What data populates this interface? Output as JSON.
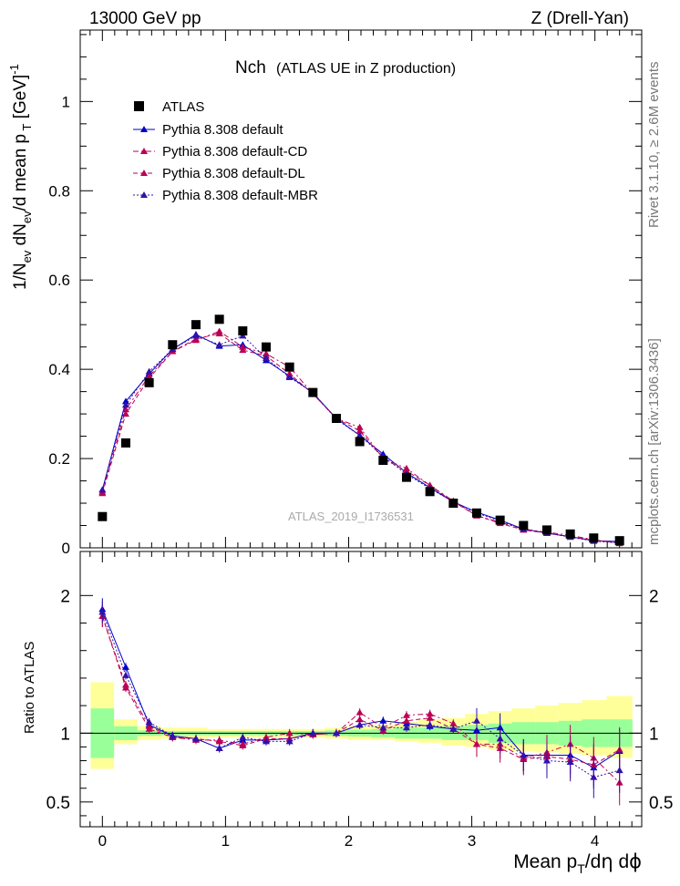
{
  "header": {
    "left": "13000 GeV pp",
    "right": "Z (Drell-Yan)"
  },
  "side_text": {
    "top": "Rivet 3.1.10, ≥ 2.6M events",
    "bottom": "mcplots.cern.ch [arXiv:1306.3436]"
  },
  "chart_data": {
    "type": "scatter",
    "title_main": "Nch",
    "title_sub": "(ATLAS UE in Z production)",
    "analysis_tag": "ATLAS_2019_I1736531",
    "xlabel": "Mean p_T/dη dϕ",
    "ylabel": "1/N_ev dN_ev/d mean p_T [GeV]^-1",
    "ratio_ylabel": "Ratio to ATLAS",
    "xlim": [
      -0.18,
      4.38
    ],
    "ylim": [
      0,
      1.16
    ],
    "ratio_ylim": [
      0.32,
      2.32
    ],
    "x_ticks": [
      "0",
      "1",
      "2",
      "3",
      "4"
    ],
    "y_ticks": [
      "0",
      "0.2",
      "0.4",
      "0.6",
      "0.8",
      "1"
    ],
    "ratio_ticks": [
      "0.5",
      "1",
      "2"
    ],
    "x": [
      0.0,
      0.19,
      0.38,
      0.57,
      0.76,
      0.95,
      1.14,
      1.33,
      1.52,
      1.71,
      1.9,
      2.09,
      2.28,
      2.47,
      2.66,
      2.85,
      3.04,
      3.23,
      3.42,
      3.61,
      3.8,
      3.99,
      4.2
    ],
    "data": {
      "name": "ATLAS",
      "values": [
        0.07,
        0.235,
        0.37,
        0.455,
        0.5,
        0.512,
        0.486,
        0.45,
        0.405,
        0.348,
        0.29,
        0.238,
        0.196,
        0.158,
        0.126,
        0.1,
        0.078,
        0.062,
        0.05,
        0.04,
        0.031,
        0.022,
        0.016
      ]
    },
    "series": [
      {
        "name": "Pythia 8.308 default",
        "color": "#0000cc",
        "dash": "solid",
        "values": [
          0.13,
          0.328,
          0.39,
          0.445,
          0.478,
          0.452,
          0.455,
          0.42,
          0.385,
          0.347,
          0.29,
          0.252,
          0.21,
          0.168,
          0.135,
          0.103,
          0.08,
          0.062,
          0.042,
          0.033,
          0.025,
          0.016,
          0.014
        ]
      },
      {
        "name": "Pythia 8.308 default-CD",
        "color": "#bb0055",
        "dash": "dashdot",
        "values": [
          0.125,
          0.31,
          0.385,
          0.44,
          0.465,
          0.485,
          0.45,
          0.435,
          0.405,
          0.345,
          0.29,
          0.27,
          0.2,
          0.178,
          0.14,
          0.105,
          0.072,
          0.057,
          0.042,
          0.035,
          0.028,
          0.018,
          0.01
        ]
      },
      {
        "name": "Pythia 8.308 default-DL",
        "color": "#bb0055",
        "dash": "dashed",
        "values": [
          0.122,
          0.3,
          0.38,
          0.44,
          0.468,
          0.48,
          0.443,
          0.43,
          0.39,
          0.345,
          0.29,
          0.262,
          0.2,
          0.172,
          0.14,
          0.103,
          0.072,
          0.055,
          0.04,
          0.033,
          0.025,
          0.017,
          0.011
        ]
      },
      {
        "name": "Pythia 8.308 default-MBR",
        "color": "#3311aa",
        "dash": "dotted",
        "values": [
          0.13,
          0.32,
          0.395,
          0.445,
          0.475,
          0.455,
          0.475,
          0.425,
          0.382,
          0.348,
          0.288,
          0.252,
          0.205,
          0.165,
          0.133,
          0.103,
          0.078,
          0.06,
          0.042,
          0.033,
          0.024,
          0.015,
          0.011
        ]
      }
    ],
    "ratio_series": [
      {
        "name": "Pythia 8.308 default",
        "values": [
          1.9,
          1.48,
          1.06,
          0.98,
          0.96,
          0.89,
          0.95,
          0.95,
          0.96,
          1.0,
          1.0,
          1.06,
          1.09,
          1.07,
          1.05,
          1.03,
          1.02,
          1.04,
          0.84,
          0.84,
          0.84,
          0.75,
          0.87
        ]
      },
      {
        "name": "Pythia 8.308 default-CD",
        "values": [
          1.85,
          1.35,
          1.05,
          0.97,
          0.95,
          0.95,
          0.92,
          0.97,
          1.0,
          0.99,
          1.0,
          1.15,
          1.04,
          1.13,
          1.14,
          1.07,
          0.92,
          0.92,
          0.82,
          0.86,
          0.92,
          0.82,
          0.64
        ]
      },
      {
        "name": "Pythia 8.308 default-DL",
        "values": [
          1.85,
          1.33,
          1.03,
          0.97,
          0.96,
          0.94,
          0.91,
          0.96,
          0.96,
          0.99,
          1.0,
          1.1,
          1.02,
          1.09,
          1.11,
          1.03,
          0.92,
          0.89,
          0.81,
          0.83,
          0.81,
          0.77,
          0.88
        ]
      },
      {
        "name": "Pythia 8.308 default-MBR",
        "values": [
          1.88,
          1.42,
          1.08,
          0.98,
          0.96,
          0.89,
          0.97,
          0.94,
          0.94,
          1.0,
          1.0,
          1.06,
          1.04,
          1.04,
          1.06,
          1.03,
          1.09,
          0.96,
          0.84,
          0.8,
          0.79,
          0.68,
          0.73
        ]
      }
    ],
    "ratio_band_stat": [
      [
        0.82,
        1.18
      ],
      [
        0.95,
        1.05
      ],
      [
        0.98,
        1.02
      ],
      [
        0.985,
        1.015
      ],
      [
        0.985,
        1.015
      ],
      [
        0.985,
        1.015
      ],
      [
        0.985,
        1.015
      ],
      [
        0.985,
        1.015
      ],
      [
        0.985,
        1.015
      ],
      [
        0.985,
        1.015
      ],
      [
        0.98,
        1.02
      ],
      [
        0.975,
        1.025
      ],
      [
        0.97,
        1.03
      ],
      [
        0.96,
        1.04
      ],
      [
        0.96,
        1.04
      ],
      [
        0.95,
        1.05
      ],
      [
        0.95,
        1.06
      ],
      [
        0.93,
        1.07
      ],
      [
        0.92,
        1.08
      ],
      [
        0.92,
        1.08
      ],
      [
        0.91,
        1.09
      ],
      [
        0.9,
        1.1
      ],
      [
        0.9,
        1.1
      ]
    ],
    "ratio_band_syst": [
      [
        0.74,
        1.37
      ],
      [
        0.92,
        1.1
      ],
      [
        0.95,
        1.05
      ],
      [
        0.96,
        1.04
      ],
      [
        0.96,
        1.04
      ],
      [
        0.97,
        1.03
      ],
      [
        0.97,
        1.03
      ],
      [
        0.97,
        1.03
      ],
      [
        0.97,
        1.03
      ],
      [
        0.97,
        1.03
      ],
      [
        0.96,
        1.04
      ],
      [
        0.95,
        1.05
      ],
      [
        0.95,
        1.06
      ],
      [
        0.94,
        1.08
      ],
      [
        0.93,
        1.1
      ],
      [
        0.91,
        1.11
      ],
      [
        0.9,
        1.14
      ],
      [
        0.88,
        1.16
      ],
      [
        0.87,
        1.18
      ],
      [
        0.86,
        1.2
      ],
      [
        0.85,
        1.22
      ],
      [
        0.84,
        1.24
      ],
      [
        0.82,
        1.27
      ]
    ]
  }
}
